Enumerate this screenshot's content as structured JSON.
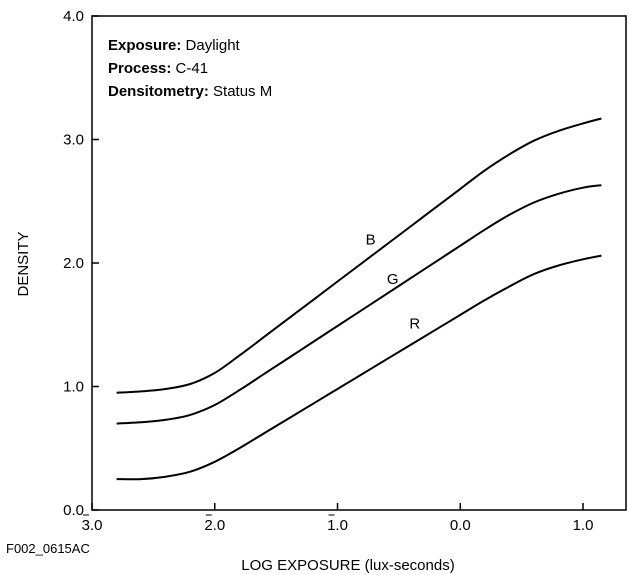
{
  "figure_id": "F002_0615AC",
  "info": [
    {
      "key": "Exposure:",
      "value": " Daylight"
    },
    {
      "key": "Process:",
      "value": " C-41"
    },
    {
      "key": "Densitometry:",
      "value": " Status M"
    }
  ],
  "chart_data": {
    "type": "line",
    "xlabel": "LOG EXPOSURE (lux-seconds)",
    "ylabel": "DENSITY",
    "xlim": [
      -3.0,
      1.35
    ],
    "ylim": [
      0.0,
      4.0
    ],
    "grid": false,
    "x_ticks": [
      {
        "value": -3.0,
        "label": "3.0",
        "bar": true
      },
      {
        "value": -2.0,
        "label": "2.0",
        "bar": true
      },
      {
        "value": -1.0,
        "label": "1.0",
        "bar": true
      },
      {
        "value": 0.0,
        "label": "0.0",
        "bar": false
      },
      {
        "value": 1.0,
        "label": "1.0",
        "bar": false
      }
    ],
    "y_ticks": [
      {
        "value": 0.0,
        "label": "0.0"
      },
      {
        "value": 1.0,
        "label": "1.0"
      },
      {
        "value": 2.0,
        "label": "2.0"
      },
      {
        "value": 3.0,
        "label": "3.0"
      },
      {
        "value": 4.0,
        "label": "4.0"
      }
    ],
    "series": [
      {
        "name": "B",
        "label_at": [
          -0.73,
          2.15
        ],
        "x": [
          -2.8,
          -2.6,
          -2.4,
          -2.2,
          -2.0,
          -1.8,
          -1.6,
          -1.4,
          -1.2,
          -1.0,
          -0.8,
          -0.6,
          -0.4,
          -0.2,
          0.0,
          0.2,
          0.4,
          0.6,
          0.8,
          1.0,
          1.15
        ],
        "y": [
          0.95,
          0.96,
          0.98,
          1.02,
          1.11,
          1.25,
          1.4,
          1.55,
          1.7,
          1.85,
          2.0,
          2.15,
          2.3,
          2.45,
          2.6,
          2.75,
          2.88,
          2.99,
          3.07,
          3.13,
          3.17
        ]
      },
      {
        "name": "G",
        "label_at": [
          -0.55,
          1.83
        ],
        "x": [
          -2.8,
          -2.6,
          -2.4,
          -2.2,
          -2.0,
          -1.8,
          -1.6,
          -1.4,
          -1.2,
          -1.0,
          -0.8,
          -0.6,
          -0.4,
          -0.2,
          0.0,
          0.2,
          0.4,
          0.6,
          0.8,
          1.0,
          1.15
        ],
        "y": [
          0.7,
          0.71,
          0.73,
          0.77,
          0.85,
          0.97,
          1.1,
          1.23,
          1.36,
          1.49,
          1.62,
          1.75,
          1.88,
          2.01,
          2.14,
          2.27,
          2.39,
          2.49,
          2.56,
          2.61,
          2.63
        ]
      },
      {
        "name": "R",
        "label_at": [
          -0.37,
          1.47
        ],
        "x": [
          -2.8,
          -2.6,
          -2.4,
          -2.2,
          -2.0,
          -1.8,
          -1.6,
          -1.4,
          -1.2,
          -1.0,
          -0.8,
          -0.6,
          -0.4,
          -0.2,
          0.0,
          0.2,
          0.4,
          0.6,
          0.8,
          1.0,
          1.15
        ],
        "y": [
          0.25,
          0.25,
          0.27,
          0.31,
          0.39,
          0.5,
          0.62,
          0.74,
          0.86,
          0.98,
          1.1,
          1.22,
          1.34,
          1.46,
          1.58,
          1.7,
          1.81,
          1.91,
          1.98,
          2.03,
          2.06
        ]
      }
    ]
  }
}
